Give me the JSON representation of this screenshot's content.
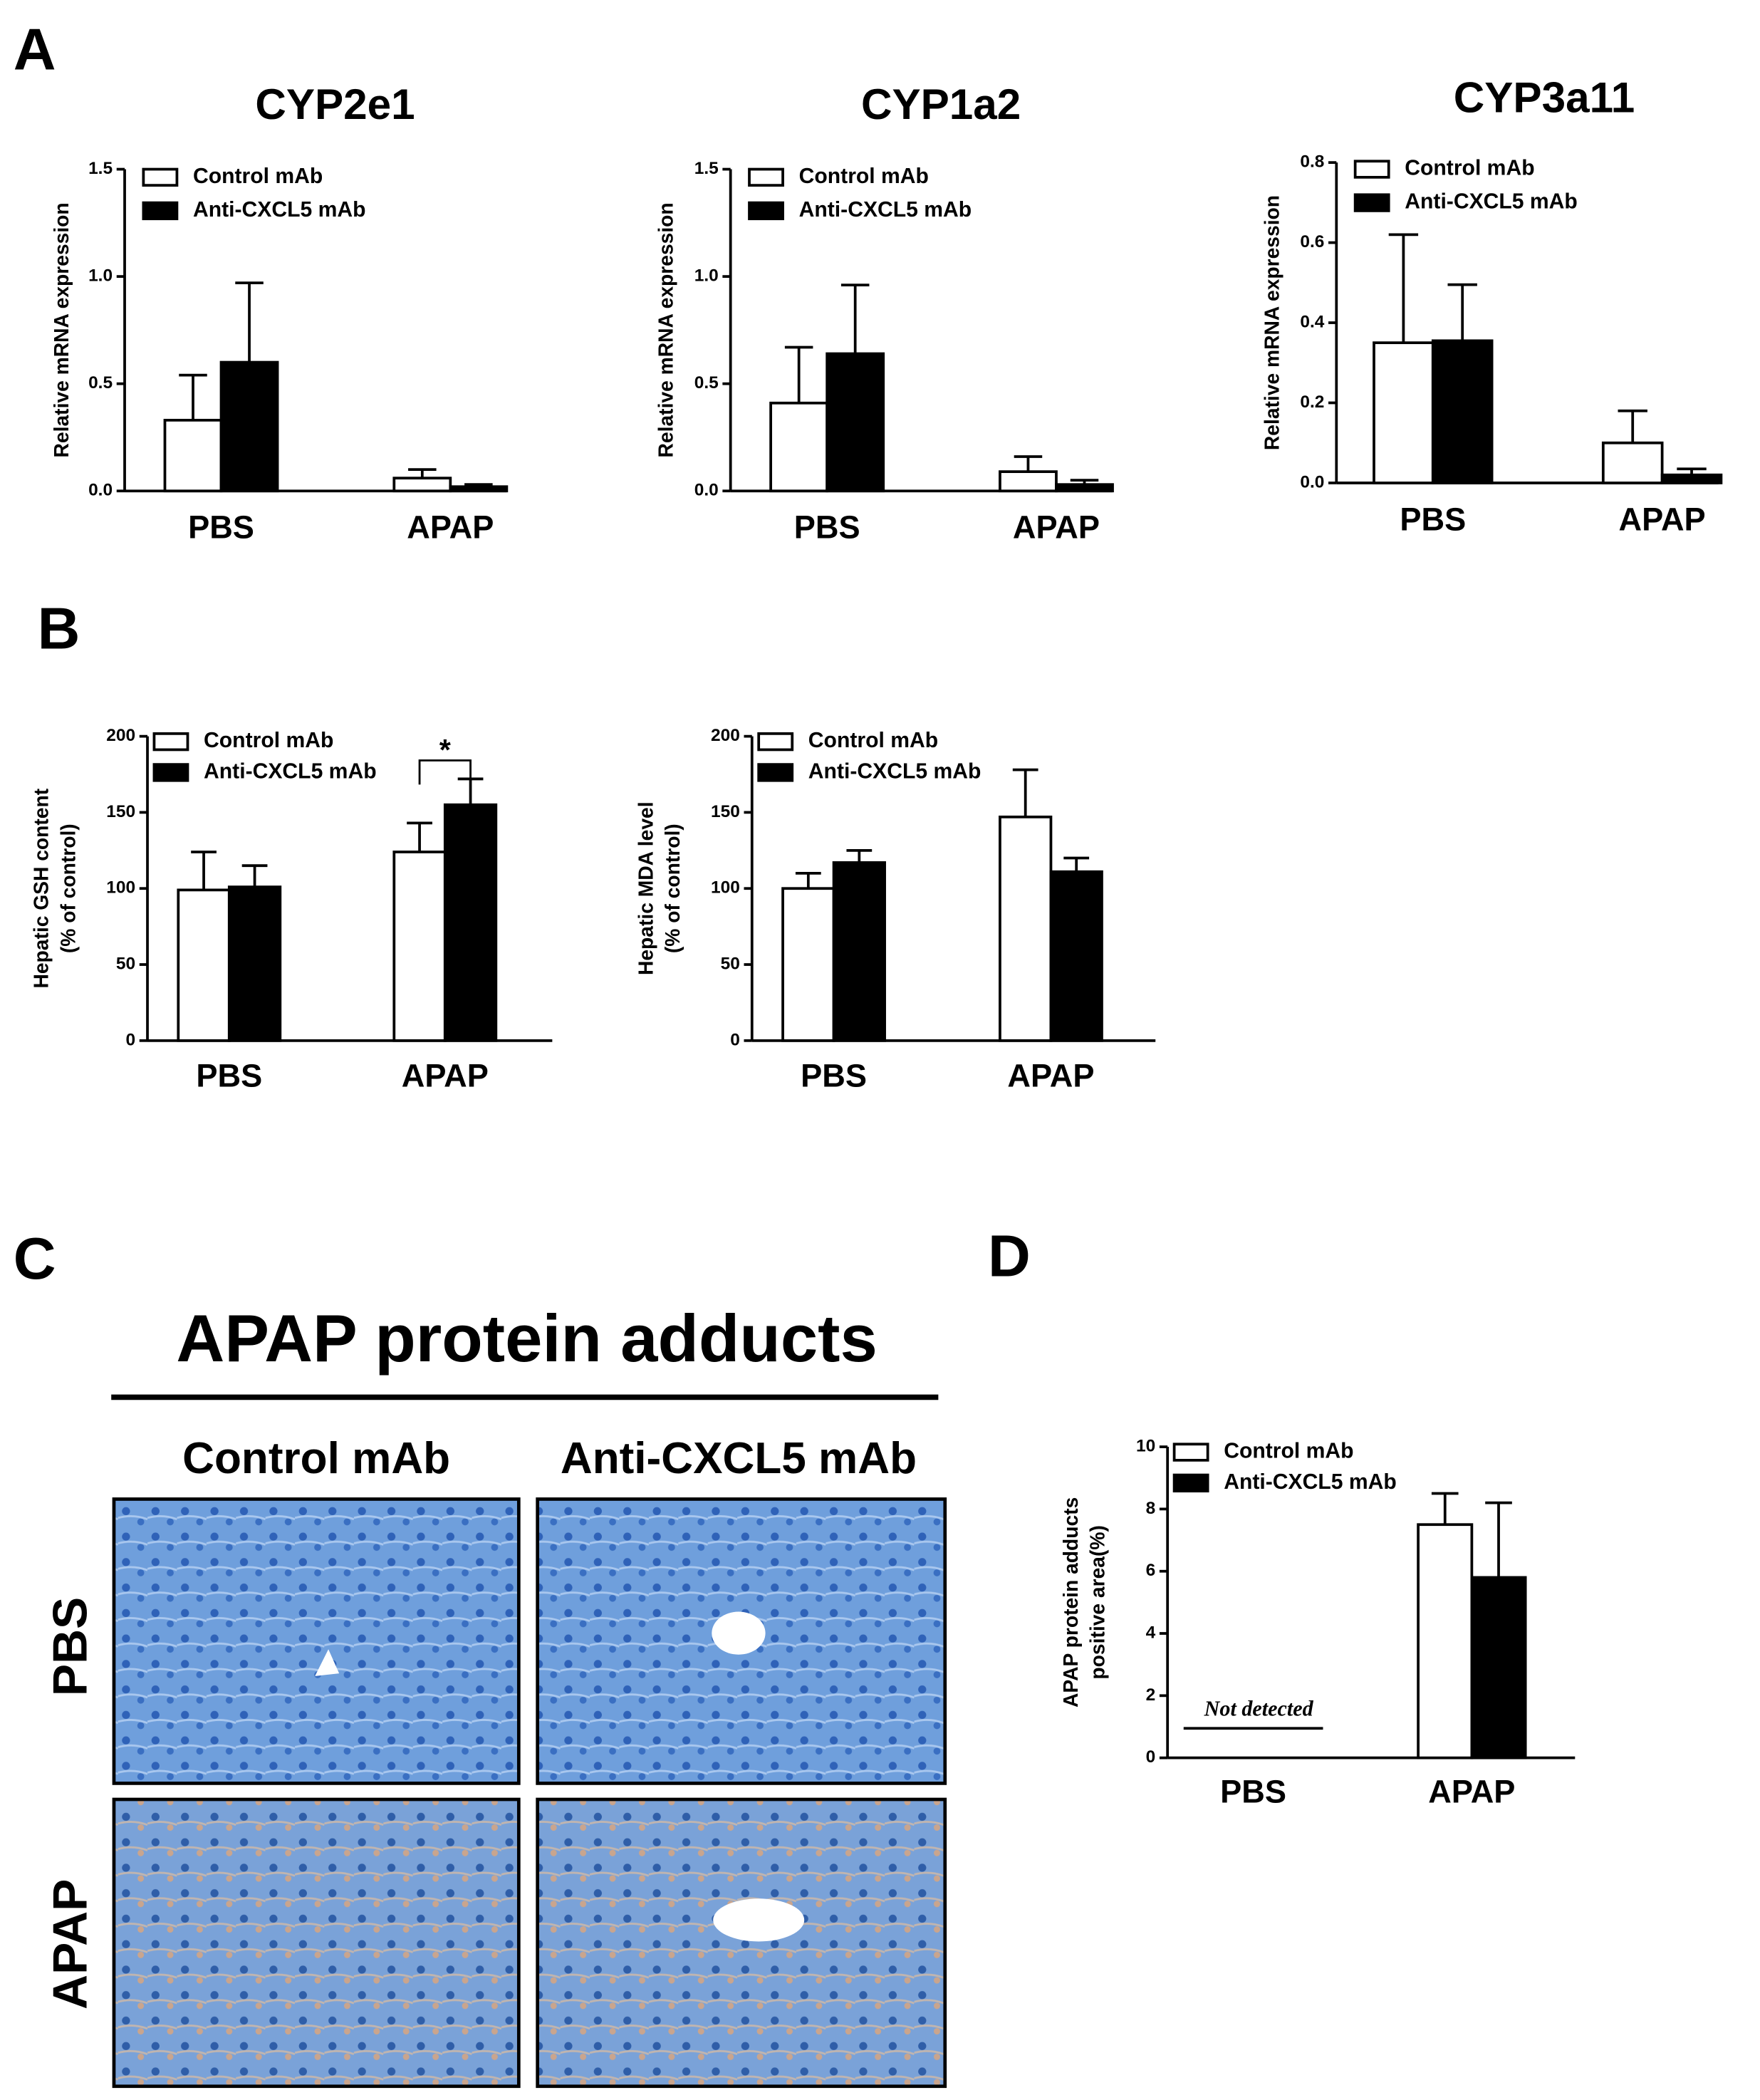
{
  "panel_labels": [
    "A",
    "B",
    "C",
    "D"
  ],
  "chart_data": [
    {
      "type": "bar",
      "title": "CYP2e1",
      "y_label": [
        "Relative mRNA expression"
      ],
      "categories": [
        "PBS",
        "APAP"
      ],
      "series": [
        {
          "name": "Control mAb",
          "color": "#ffffff",
          "values": [
            0.33,
            0.06
          ],
          "errors": [
            0.21,
            0.04
          ]
        },
        {
          "name": "Anti-CXCL5 mAb",
          "color": "#000000",
          "values": [
            0.6,
            0.02
          ],
          "errors": [
            0.37,
            0.01
          ]
        }
      ],
      "ylim": [
        0,
        1.5
      ],
      "yticks": [
        {
          "value": 0,
          "label": "0.0"
        },
        0.5,
        {
          "value": 1,
          "label": "1.0"
        },
        1.5
      ]
    },
    {
      "type": "bar",
      "title": "CYP1a2",
      "y_label": [
        "Relative mRNA expression"
      ],
      "categories": [
        "PBS",
        "APAP"
      ],
      "series": [
        {
          "name": "Control mAb",
          "color": "#ffffff",
          "values": [
            0.41,
            0.09
          ],
          "errors": [
            0.26,
            0.07
          ]
        },
        {
          "name": "Anti-CXCL5 mAb",
          "color": "#000000",
          "values": [
            0.64,
            0.03
          ],
          "errors": [
            0.32,
            0.02
          ]
        }
      ],
      "ylim": [
        0,
        1.5
      ],
      "yticks": [
        {
          "value": 0,
          "label": "0.0"
        },
        0.5,
        {
          "value": 1,
          "label": "1.0"
        },
        1.5
      ]
    },
    {
      "type": "bar",
      "title": "CYP3a11",
      "y_label": [
        "Relative mRNA expression"
      ],
      "categories": [
        "PBS",
        "APAP"
      ],
      "series": [
        {
          "name": "Control mAb",
          "color": "#ffffff",
          "values": [
            0.35,
            0.1
          ],
          "errors": [
            0.27,
            0.08
          ]
        },
        {
          "name": "Anti-CXCL5 mAb",
          "color": "#000000",
          "values": [
            0.355,
            0.02
          ],
          "errors": [
            0.14,
            0.015
          ]
        }
      ],
      "ylim": [
        0,
        0.8
      ],
      "yticks": [
        {
          "value": 0,
          "label": "0.0"
        },
        0.2,
        0.4,
        0.6,
        0.8
      ]
    },
    {
      "type": "bar",
      "y_label": [
        "Hepatic GSH content",
        "(% of control)"
      ],
      "categories": [
        "PBS",
        "APAP"
      ],
      "series": [
        {
          "name": "Control mAb",
          "color": "#ffffff",
          "values": [
            99,
            124
          ],
          "errors": [
            25,
            19
          ]
        },
        {
          "name": "Anti-CXCL5 mAb",
          "color": "#000000",
          "values": [
            101,
            155
          ],
          "errors": [
            14,
            17
          ]
        }
      ],
      "ylim": [
        0,
        200
      ],
      "yticks": [
        0,
        50,
        100,
        150,
        200
      ],
      "significance": "*"
    },
    {
      "type": "bar",
      "y_label": [
        "Hepatic MDA level",
        "(% of control)"
      ],
      "categories": [
        "PBS",
        "APAP"
      ],
      "series": [
        {
          "name": "Control mAb",
          "color": "#ffffff",
          "values": [
            100,
            147
          ],
          "errors": [
            10,
            31
          ]
        },
        {
          "name": "Anti-CXCL5 mAb",
          "color": "#000000",
          "values": [
            117,
            111
          ],
          "errors": [
            8,
            9
          ]
        }
      ],
      "ylim": [
        0,
        200
      ],
      "yticks": [
        0,
        50,
        100,
        150,
        200
      ]
    },
    {
      "type": "bar",
      "y_label": [
        "APAP protein adducts",
        "positive area(%)"
      ],
      "categories": [
        "PBS",
        "APAP"
      ],
      "series": [
        {
          "name": "Control mAb",
          "color": "#ffffff",
          "values": [
            null,
            7.5
          ],
          "errors": [
            null,
            1.0
          ]
        },
        {
          "name": "Anti-CXCL5 mAb",
          "color": "#000000",
          "values": [
            null,
            5.8
          ],
          "errors": [
            null,
            2.4
          ]
        }
      ],
      "ylim": [
        0,
        10
      ],
      "yticks": [
        0,
        2,
        4,
        6,
        8,
        10
      ],
      "annotation": "Not detected"
    }
  ],
  "micrographs": {
    "title": "APAP protein adducts",
    "columns": [
      "Control mAb",
      "Anti-CXCL5 mAb"
    ],
    "rows": [
      "PBS",
      "APAP"
    ]
  }
}
